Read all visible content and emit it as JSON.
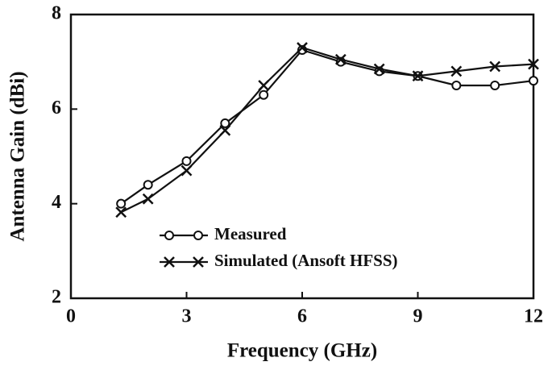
{
  "chart_data": {
    "type": "line",
    "x_label": "Frequency (GHz)",
    "y_label": "Antenna Gain (dBi)",
    "xlim": [
      0,
      12
    ],
    "xticks": [
      0,
      3,
      6,
      9,
      12
    ],
    "ylim": [
      2,
      8
    ],
    "yticks": [
      2,
      4,
      6,
      8
    ],
    "x": [
      1.3,
      2,
      3,
      4,
      5,
      6,
      7,
      8,
      9,
      10,
      11,
      12
    ],
    "series": [
      {
        "name": "Measured",
        "color": "#111111",
        "marker": "circle",
        "values": [
          4.0,
          4.4,
          4.9,
          5.7,
          6.3,
          7.25,
          7.0,
          6.8,
          6.7,
          6.5,
          6.5,
          6.6
        ]
      },
      {
        "name": "Simulated (Ansoft HFSS)",
        "color": "#111111",
        "marker": "x",
        "values": [
          3.82,
          4.1,
          4.7,
          5.55,
          6.5,
          7.3,
          7.05,
          6.85,
          6.7,
          6.8,
          6.9,
          6.95
        ]
      }
    ],
    "legend": "lower-left"
  }
}
